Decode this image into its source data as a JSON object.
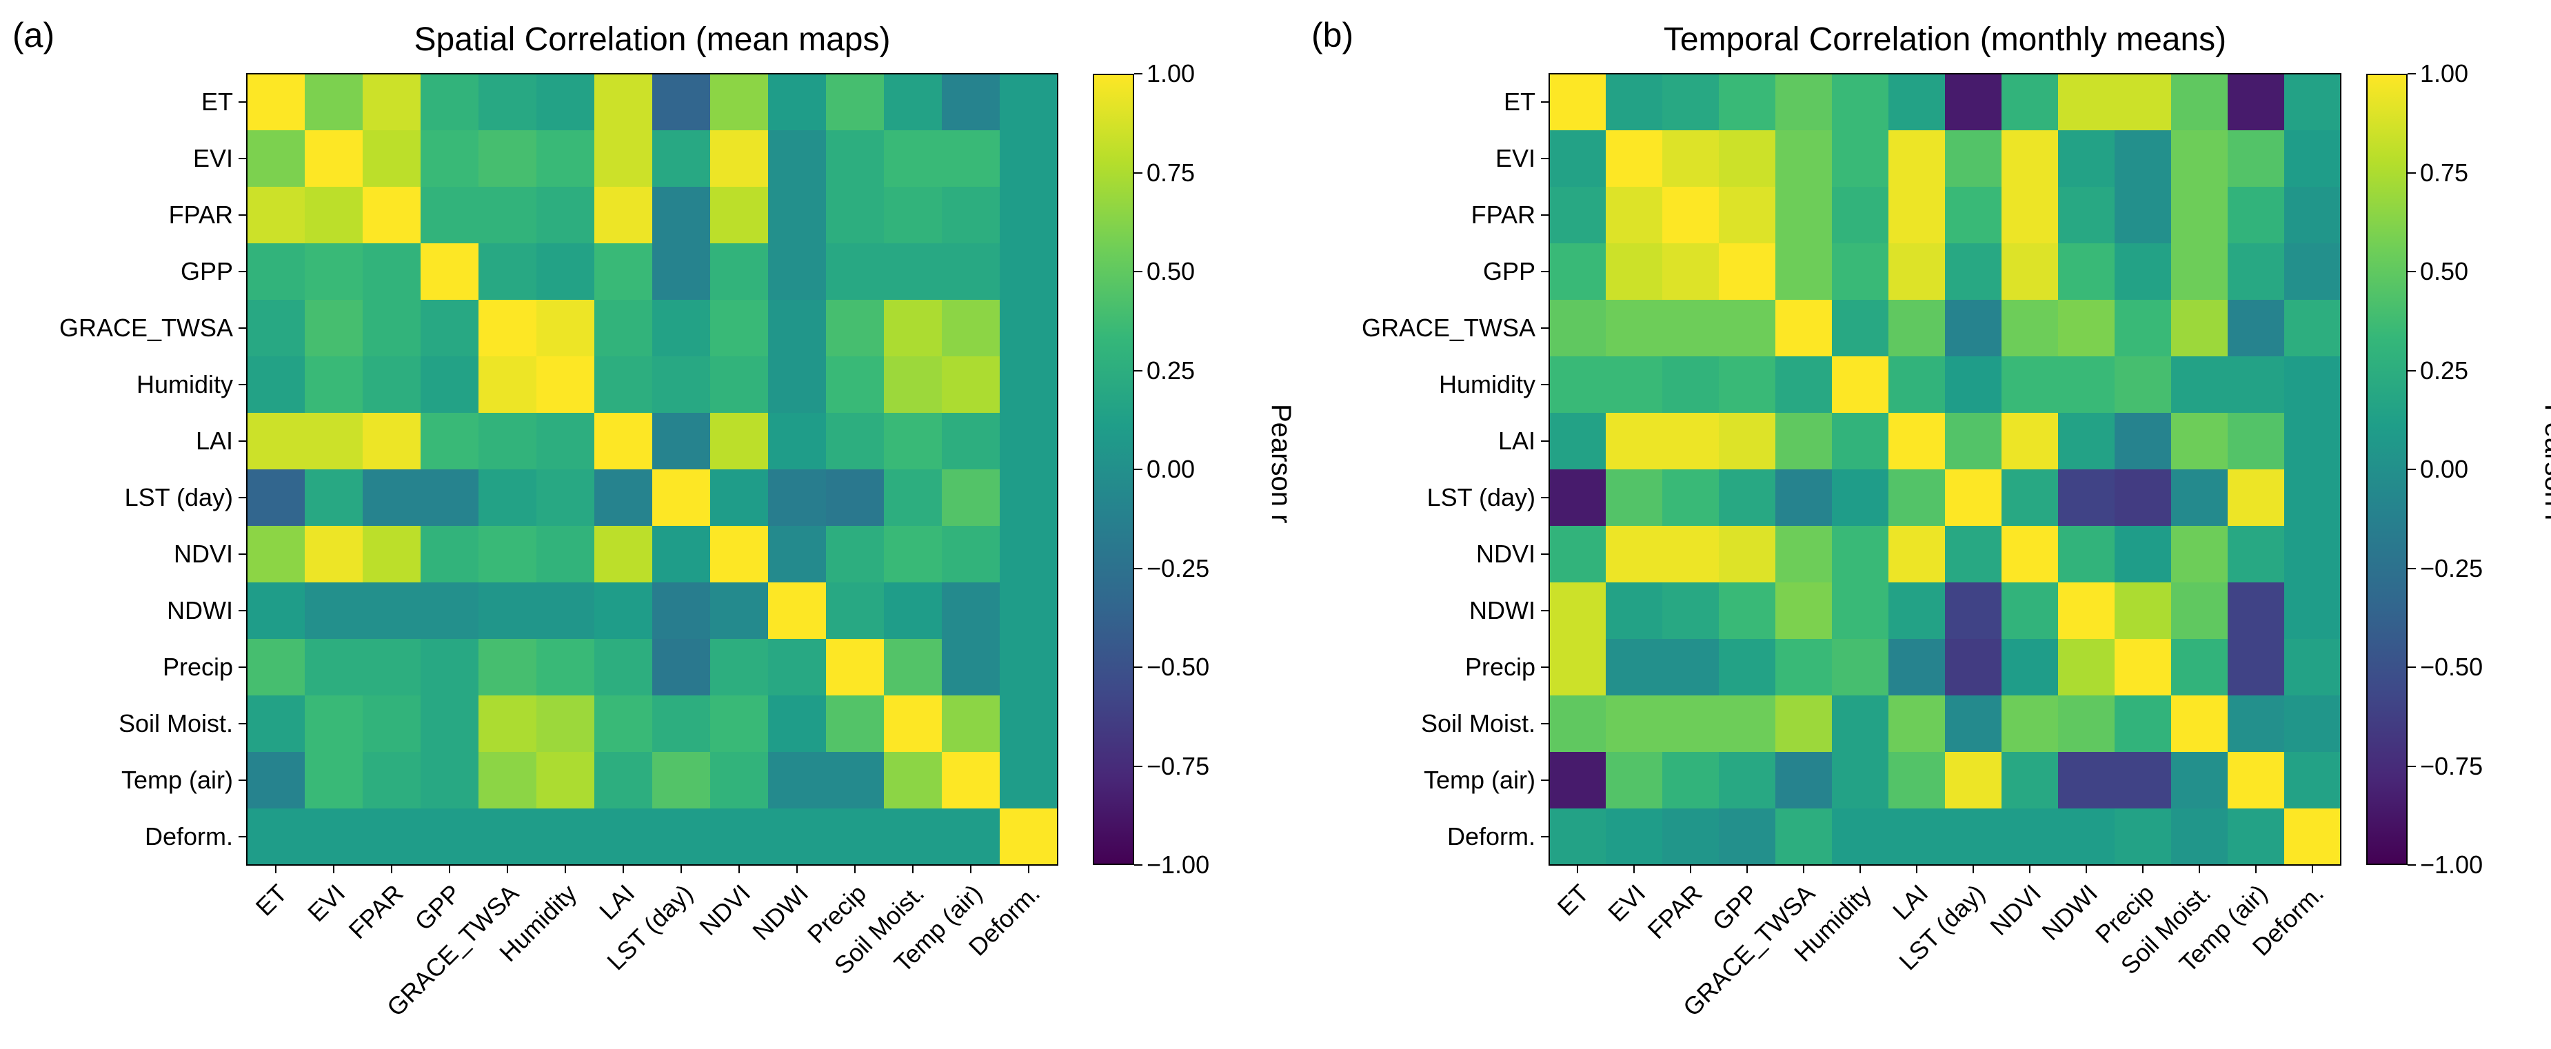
{
  "labels": [
    "ET",
    "EVI",
    "FPAR",
    "GPP",
    "GRACE_TWSA",
    "Humidity",
    "LAI",
    "LST (day)",
    "NDVI",
    "NDWI",
    "Precip",
    "Soil Moist.",
    "Temp (air)",
    "Deform."
  ],
  "colormap": {
    "name": "viridis",
    "stops": [
      "#440154",
      "#482878",
      "#3e4a89",
      "#31688e",
      "#26828e",
      "#1f9e89",
      "#35b779",
      "#6ece58",
      "#b5de2b",
      "#fde725"
    ]
  },
  "chart_data": [
    {
      "type": "heatmap",
      "panel": "(a)",
      "title": "Spatial Correlation (mean maps)",
      "colorbar_label": "Pearson r",
      "colorbar_ticks": [
        "1.00",
        "0.75",
        "0.50",
        "0.25",
        "0.00",
        "−0.25",
        "−0.50",
        "−0.75",
        "−1.00"
      ],
      "vmin": -1,
      "vmax": 1,
      "matrix": [
        [
          1.0,
          0.6,
          0.85,
          0.3,
          0.2,
          0.15,
          0.85,
          -0.35,
          0.65,
          0.1,
          0.4,
          0.15,
          -0.1,
          0.1
        ],
        [
          0.6,
          1.0,
          0.8,
          0.35,
          0.4,
          0.35,
          0.85,
          0.2,
          0.95,
          0.0,
          0.25,
          0.35,
          0.35,
          0.1
        ],
        [
          0.85,
          0.8,
          1.0,
          0.3,
          0.3,
          0.25,
          0.95,
          -0.1,
          0.8,
          0.0,
          0.25,
          0.3,
          0.25,
          0.1
        ],
        [
          0.3,
          0.35,
          0.3,
          1.0,
          0.2,
          0.15,
          0.35,
          -0.1,
          0.3,
          0.0,
          0.2,
          0.2,
          0.2,
          0.1
        ],
        [
          0.2,
          0.4,
          0.3,
          0.2,
          1.0,
          0.95,
          0.3,
          0.15,
          0.35,
          0.05,
          0.4,
          0.75,
          0.65,
          0.1
        ],
        [
          0.15,
          0.35,
          0.25,
          0.15,
          0.95,
          1.0,
          0.25,
          0.2,
          0.3,
          0.05,
          0.35,
          0.7,
          0.75,
          0.1
        ],
        [
          0.85,
          0.85,
          0.95,
          0.35,
          0.3,
          0.25,
          1.0,
          -0.1,
          0.8,
          0.1,
          0.25,
          0.35,
          0.25,
          0.1
        ],
        [
          -0.35,
          0.2,
          -0.1,
          -0.1,
          0.15,
          0.2,
          -0.1,
          1.0,
          0.1,
          -0.15,
          -0.2,
          0.25,
          0.45,
          0.1
        ],
        [
          0.65,
          0.95,
          0.8,
          0.3,
          0.35,
          0.3,
          0.8,
          0.1,
          1.0,
          -0.05,
          0.25,
          0.35,
          0.3,
          0.1
        ],
        [
          0.1,
          0.0,
          0.0,
          0.0,
          0.05,
          0.05,
          0.1,
          -0.15,
          -0.05,
          1.0,
          0.2,
          0.1,
          -0.05,
          0.1
        ],
        [
          0.4,
          0.25,
          0.25,
          0.2,
          0.4,
          0.35,
          0.25,
          -0.2,
          0.25,
          0.2,
          1.0,
          0.45,
          -0.05,
          0.1
        ],
        [
          0.15,
          0.35,
          0.3,
          0.2,
          0.75,
          0.7,
          0.35,
          0.25,
          0.35,
          0.1,
          0.45,
          1.0,
          0.65,
          0.1
        ],
        [
          -0.1,
          0.35,
          0.25,
          0.2,
          0.65,
          0.75,
          0.25,
          0.45,
          0.3,
          -0.05,
          -0.05,
          0.65,
          1.0,
          0.1
        ],
        [
          0.1,
          0.1,
          0.1,
          0.1,
          0.1,
          0.1,
          0.1,
          0.1,
          0.1,
          0.1,
          0.1,
          0.1,
          0.1,
          1.0
        ]
      ]
    },
    {
      "type": "heatmap",
      "panel": "(b)",
      "title": "Temporal Correlation (monthly means)",
      "colorbar_label": "Pearson r",
      "colorbar_ticks": [
        "1.00",
        "0.75",
        "0.50",
        "0.25",
        "0.00",
        "−0.25",
        "−0.50",
        "−0.75",
        "−1.00"
      ],
      "vmin": -1,
      "vmax": 1,
      "matrix": [
        [
          1.0,
          0.15,
          0.2,
          0.35,
          0.5,
          0.35,
          0.15,
          -0.85,
          0.3,
          0.85,
          0.85,
          0.5,
          -0.85,
          0.15
        ],
        [
          0.15,
          1.0,
          0.9,
          0.85,
          0.55,
          0.35,
          0.95,
          0.45,
          0.95,
          0.15,
          0.0,
          0.55,
          0.45,
          0.1
        ],
        [
          0.2,
          0.9,
          1.0,
          0.9,
          0.55,
          0.3,
          0.95,
          0.35,
          0.95,
          0.2,
          0.0,
          0.55,
          0.3,
          0.05
        ],
        [
          0.35,
          0.85,
          0.9,
          1.0,
          0.55,
          0.35,
          0.9,
          0.2,
          0.9,
          0.35,
          0.15,
          0.55,
          0.2,
          0.0
        ],
        [
          0.5,
          0.55,
          0.55,
          0.55,
          1.0,
          0.2,
          0.5,
          -0.1,
          0.55,
          0.6,
          0.35,
          0.7,
          -0.1,
          0.25
        ],
        [
          0.35,
          0.35,
          0.3,
          0.35,
          0.2,
          1.0,
          0.3,
          0.1,
          0.35,
          0.35,
          0.4,
          0.15,
          0.15,
          0.1
        ],
        [
          0.15,
          0.95,
          0.95,
          0.9,
          0.5,
          0.3,
          1.0,
          0.45,
          0.95,
          0.15,
          -0.1,
          0.55,
          0.45,
          0.1
        ],
        [
          -0.85,
          0.45,
          0.35,
          0.2,
          -0.1,
          0.1,
          0.45,
          1.0,
          0.2,
          -0.6,
          -0.65,
          -0.05,
          0.95,
          0.1
        ],
        [
          0.3,
          0.95,
          0.95,
          0.9,
          0.55,
          0.35,
          0.95,
          0.2,
          1.0,
          0.3,
          0.1,
          0.55,
          0.2,
          0.1
        ],
        [
          0.85,
          0.15,
          0.2,
          0.35,
          0.6,
          0.35,
          0.15,
          -0.6,
          0.3,
          1.0,
          0.75,
          0.5,
          -0.6,
          0.1
        ],
        [
          0.85,
          0.0,
          0.0,
          0.15,
          0.35,
          0.4,
          -0.1,
          -0.65,
          0.1,
          0.75,
          1.0,
          0.3,
          -0.6,
          0.15
        ],
        [
          0.5,
          0.55,
          0.55,
          0.55,
          0.7,
          0.15,
          0.55,
          -0.05,
          0.55,
          0.5,
          0.3,
          1.0,
          0.0,
          0.05
        ],
        [
          -0.85,
          0.45,
          0.3,
          0.2,
          -0.1,
          0.15,
          0.45,
          0.95,
          0.2,
          -0.6,
          -0.6,
          0.0,
          1.0,
          0.15
        ],
        [
          0.15,
          0.1,
          0.05,
          0.0,
          0.25,
          0.1,
          0.1,
          0.1,
          0.1,
          0.1,
          0.15,
          0.05,
          0.15,
          1.0
        ]
      ]
    }
  ]
}
